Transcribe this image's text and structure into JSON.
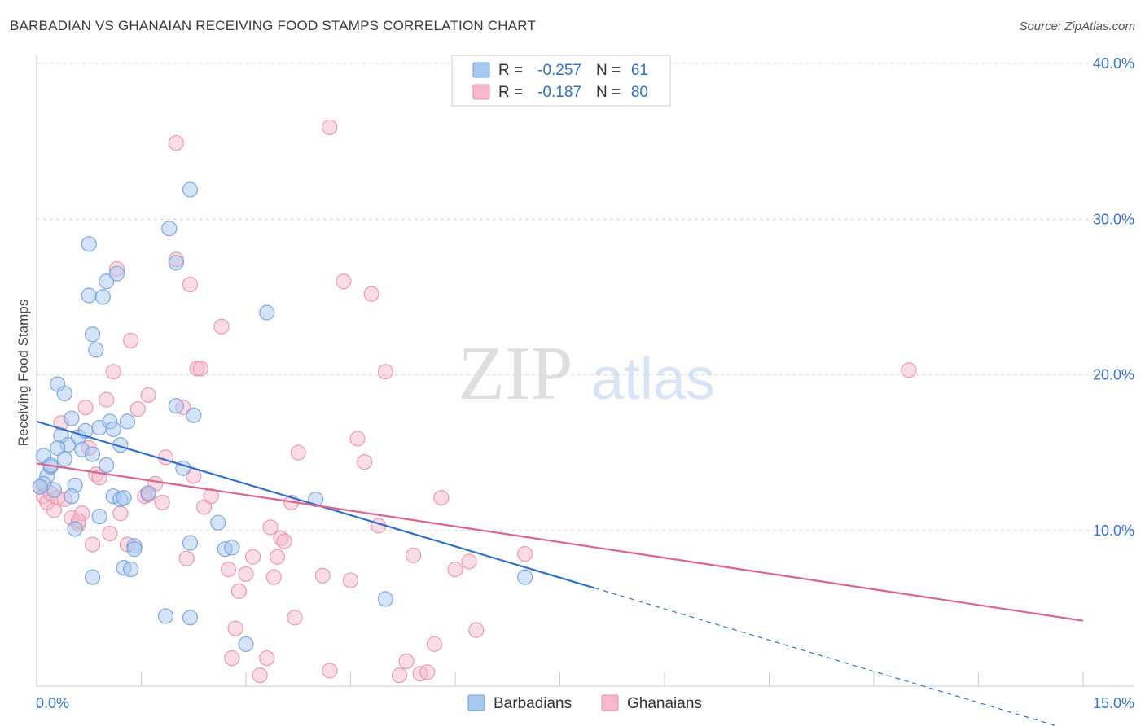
{
  "title": "BARBADIAN VS GHANAIAN RECEIVING FOOD STAMPS CORRELATION CHART",
  "source": "Source: ZipAtlas.com",
  "watermark": {
    "zip": "ZIP",
    "atlas": "atlas"
  },
  "colors": {
    "blue_fill": "#a9c8f0",
    "blue_stroke": "#6b9bd8",
    "blue_line": "#2f6fd0",
    "pink_fill": "#f6b9cc",
    "pink_stroke": "#e98aa8",
    "pink_line": "#e0608e",
    "tick_text": "#3a73c8",
    "grid": "#d8d8d8"
  },
  "legend": {
    "rows": [
      {
        "r_label": "R =",
        "r_value": "-0.257",
        "n_label": "N =",
        "n_value": "61",
        "series": "blue"
      },
      {
        "r_label": "R =",
        "r_value": "-0.187",
        "n_label": "N =",
        "n_value": "80",
        "series": "pink"
      }
    ]
  },
  "chart_data": {
    "type": "scatter",
    "title": "BARBADIAN VS GHANAIAN RECEIVING FOOD STAMPS CORRELATION CHART",
    "xlabel": "",
    "ylabel": "Receiving Food Stamps",
    "xlim": [
      0,
      15
    ],
    "ylim": [
      0,
      40
    ],
    "x_tick_labels": [
      "0.0%",
      "15.0%"
    ],
    "y_ticks": [
      10,
      20,
      30,
      40
    ],
    "y_tick_labels": [
      "10.0%",
      "20.0%",
      "30.0%",
      "40.0%"
    ],
    "grid": true,
    "legend_position": "bottom-center",
    "series": [
      {
        "name": "Barbadians",
        "color": "blue",
        "r": -0.257,
        "n": 61,
        "trend": {
          "x0": 0.0,
          "y0": 17.0,
          "x1": 8.0,
          "y1": 6.3,
          "dashed_to_x": 15.0
        },
        "points": [
          [
            0.1,
            14.8
          ],
          [
            0.15,
            13.5
          ],
          [
            0.2,
            14.1
          ],
          [
            0.25,
            12.6
          ],
          [
            0.1,
            13.0
          ],
          [
            0.05,
            12.8
          ],
          [
            0.3,
            19.4
          ],
          [
            0.35,
            16.1
          ],
          [
            0.4,
            18.8
          ],
          [
            0.45,
            15.5
          ],
          [
            0.5,
            17.2
          ],
          [
            0.55,
            12.9
          ],
          [
            0.6,
            16.0
          ],
          [
            0.65,
            15.2
          ],
          [
            0.3,
            15.3
          ],
          [
            0.4,
            14.6
          ],
          [
            0.5,
            12.2
          ],
          [
            0.55,
            10.1
          ],
          [
            0.7,
            16.4
          ],
          [
            0.75,
            25.1
          ],
          [
            0.8,
            22.6
          ],
          [
            0.85,
            21.6
          ],
          [
            0.9,
            16.6
          ],
          [
            0.95,
            25.0
          ],
          [
            1.0,
            26.0
          ],
          [
            1.05,
            17.0
          ],
          [
            1.1,
            16.5
          ],
          [
            1.15,
            26.5
          ],
          [
            1.2,
            15.5
          ],
          [
            1.3,
            17.0
          ],
          [
            0.75,
            28.4
          ],
          [
            0.8,
            14.9
          ],
          [
            0.9,
            10.9
          ],
          [
            0.8,
            7.0
          ],
          [
            1.0,
            14.2
          ],
          [
            1.1,
            12.2
          ],
          [
            1.2,
            12.0
          ],
          [
            1.25,
            7.6
          ],
          [
            1.35,
            7.5
          ],
          [
            1.4,
            9.0
          ],
          [
            1.4,
            8.8
          ],
          [
            1.6,
            12.4
          ],
          [
            1.9,
            29.4
          ],
          [
            2.0,
            27.2
          ],
          [
            2.2,
            31.9
          ],
          [
            2.0,
            18.0
          ],
          [
            2.1,
            14.0
          ],
          [
            2.2,
            9.2
          ],
          [
            2.25,
            17.4
          ],
          [
            2.6,
            10.5
          ],
          [
            2.7,
            8.8
          ],
          [
            2.8,
            8.9
          ],
          [
            1.85,
            4.5
          ],
          [
            2.2,
            4.4
          ],
          [
            3.3,
            24.0
          ],
          [
            3.0,
            2.7
          ],
          [
            4.0,
            12.0
          ],
          [
            5.0,
            5.6
          ],
          [
            7.0,
            7.0
          ],
          [
            0.2,
            14.2
          ],
          [
            1.25,
            12.1
          ]
        ]
      },
      {
        "name": "Ghanaians",
        "color": "pink",
        "r": -0.187,
        "n": 80,
        "trend": {
          "x0": 0.0,
          "y0": 14.3,
          "x1": 15.0,
          "y1": 4.2
        },
        "points": [
          [
            0.05,
            12.8
          ],
          [
            0.1,
            12.2
          ],
          [
            0.15,
            11.8
          ],
          [
            0.2,
            12.4
          ],
          [
            0.25,
            11.3
          ],
          [
            0.3,
            12.1
          ],
          [
            0.35,
            16.9
          ],
          [
            0.4,
            12.0
          ],
          [
            0.5,
            10.8
          ],
          [
            0.6,
            10.4
          ],
          [
            0.65,
            11.1
          ],
          [
            0.7,
            17.9
          ],
          [
            0.75,
            15.3
          ],
          [
            0.8,
            9.1
          ],
          [
            0.85,
            13.6
          ],
          [
            0.9,
            13.4
          ],
          [
            1.0,
            18.4
          ],
          [
            1.05,
            9.8
          ],
          [
            1.1,
            20.2
          ],
          [
            1.15,
            26.8
          ],
          [
            1.2,
            11.1
          ],
          [
            1.3,
            9.1
          ],
          [
            1.35,
            22.2
          ],
          [
            1.45,
            17.8
          ],
          [
            1.55,
            12.2
          ],
          [
            1.6,
            18.7
          ],
          [
            1.7,
            13.0
          ],
          [
            1.8,
            11.8
          ],
          [
            1.85,
            14.7
          ],
          [
            2.0,
            27.4
          ],
          [
            2.0,
            34.9
          ],
          [
            2.1,
            17.9
          ],
          [
            2.15,
            8.2
          ],
          [
            2.2,
            25.8
          ],
          [
            2.25,
            13.5
          ],
          [
            2.3,
            20.4
          ],
          [
            2.35,
            20.4
          ],
          [
            2.4,
            11.5
          ],
          [
            2.5,
            12.2
          ],
          [
            2.65,
            23.1
          ],
          [
            2.75,
            7.5
          ],
          [
            2.8,
            1.8
          ],
          [
            2.85,
            3.7
          ],
          [
            2.9,
            6.1
          ],
          [
            3.0,
            7.2
          ],
          [
            3.1,
            8.3
          ],
          [
            3.2,
            0.7
          ],
          [
            3.3,
            1.8
          ],
          [
            3.35,
            10.2
          ],
          [
            3.4,
            7.0
          ],
          [
            3.45,
            8.3
          ],
          [
            3.5,
            9.5
          ],
          [
            3.55,
            9.3
          ],
          [
            3.65,
            11.8
          ],
          [
            3.7,
            4.4
          ],
          [
            3.75,
            15.0
          ],
          [
            4.1,
            7.1
          ],
          [
            4.2,
            1.0
          ],
          [
            4.2,
            35.9
          ],
          [
            4.4,
            26.0
          ],
          [
            4.5,
            6.8
          ],
          [
            4.6,
            15.9
          ],
          [
            4.7,
            14.4
          ],
          [
            4.8,
            25.2
          ],
          [
            4.9,
            10.3
          ],
          [
            5.0,
            20.2
          ],
          [
            5.2,
            0.7
          ],
          [
            5.3,
            1.6
          ],
          [
            5.4,
            8.4
          ],
          [
            5.5,
            0.8
          ],
          [
            5.6,
            0.9
          ],
          [
            5.7,
            2.7
          ],
          [
            5.8,
            12.1
          ],
          [
            6.0,
            7.5
          ],
          [
            6.2,
            8.0
          ],
          [
            6.3,
            3.6
          ],
          [
            7.0,
            8.5
          ],
          [
            12.5,
            20.3
          ],
          [
            0.6,
            10.6
          ],
          [
            1.6,
            12.3
          ]
        ]
      }
    ]
  }
}
